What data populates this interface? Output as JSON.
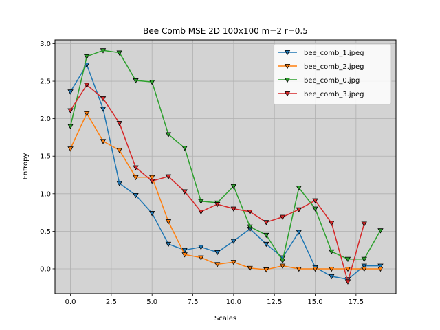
{
  "chart_data": {
    "type": "line",
    "title": "Bee Comb MSE 2D 100x100 m=2 r=0.5",
    "xlabel": "Scales",
    "ylabel": "Entropy",
    "xlim": [
      -0.95,
      19.95
    ],
    "ylim": [
      -0.33,
      3.05
    ],
    "xticks": [
      0.0,
      2.5,
      5.0,
      7.5,
      10.0,
      12.5,
      15.0,
      17.5
    ],
    "xtick_labels": [
      "0.0",
      "2.5",
      "5.0",
      "7.5",
      "10.0",
      "12.5",
      "15.0",
      "17.5"
    ],
    "yticks": [
      0.0,
      0.5,
      1.0,
      1.5,
      2.0,
      2.5,
      3.0
    ],
    "ytick_labels": [
      "0.0",
      "0.5",
      "1.0",
      "1.5",
      "2.0",
      "2.5",
      "3.0"
    ],
    "grid": true,
    "background": "#d3d3d3",
    "legend_position": "top-right",
    "marker": "triangle-down",
    "x": [
      0,
      1,
      2,
      3,
      4,
      5,
      6,
      7,
      8,
      9,
      10,
      11,
      12,
      13,
      14,
      15,
      16,
      17,
      18,
      19
    ],
    "series": [
      {
        "name": "bee_comb_1.jpeg",
        "color": "#1f77b4",
        "values": [
          2.36,
          2.72,
          2.13,
          1.14,
          0.98,
          0.74,
          0.33,
          0.25,
          0.29,
          0.22,
          0.37,
          0.53,
          0.33,
          0.15,
          0.49,
          0.02,
          -0.1,
          -0.14,
          0.04,
          0.04
        ]
      },
      {
        "name": "bee_comb_2.jpeg",
        "color": "#ff7f0e",
        "values": [
          1.6,
          2.07,
          1.7,
          1.58,
          1.22,
          1.22,
          0.63,
          0.19,
          0.15,
          0.06,
          0.09,
          0.01,
          -0.01,
          0.04,
          0.0,
          0.0,
          0.0,
          0.0,
          0.0,
          0.0
        ]
      },
      {
        "name": "bee_comb_0.jpg",
        "color": "#2ca02c",
        "values": [
          1.9,
          2.83,
          2.91,
          2.88,
          2.51,
          2.49,
          1.79,
          1.61,
          0.9,
          0.88,
          1.1,
          0.56,
          0.45,
          0.11,
          1.08,
          0.8,
          0.23,
          0.13,
          0.13,
          0.51
        ]
      },
      {
        "name": "bee_comb_3.jpeg",
        "color": "#d62728",
        "values": [
          2.11,
          2.45,
          2.27,
          1.94,
          1.35,
          1.17,
          1.23,
          1.03,
          0.76,
          0.86,
          0.8,
          0.76,
          0.62,
          0.69,
          0.79,
          0.91,
          0.61,
          -0.17,
          0.6,
          null
        ]
      }
    ]
  }
}
